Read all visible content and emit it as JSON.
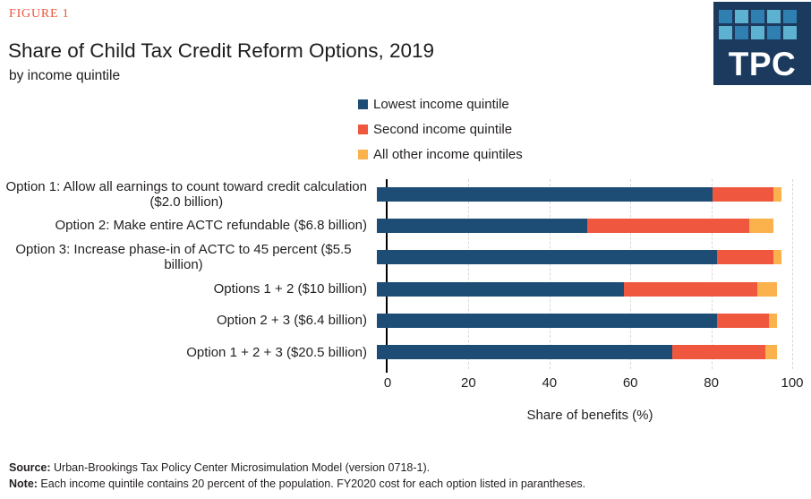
{
  "figure_label": "FIGURE 1",
  "title": "Share of Child Tax Credit Reform Options, 2019",
  "subtitle": "by income quintile",
  "logo": {
    "text": "TPC"
  },
  "colors": {
    "accent_red": "#ee5439",
    "logo_navy": "#1b3a5e",
    "logo_square_medium": "#2f7fb1",
    "logo_square_light": "#5db1d1",
    "bar_navy": "#1d4d75",
    "bar_red": "#f0573f",
    "bar_yellow": "#fbb14c",
    "gridline": "#d7d7d7",
    "text": "#231f20"
  },
  "chart_data": {
    "type": "bar",
    "orientation": "horizontal",
    "stacked": true,
    "title": "Share of Child Tax Credit Reform Options, 2019",
    "subtitle": "by income quintile",
    "categories": [
      "Option 1: Allow all earnings to count toward credit calculation\n($2.0 billion)",
      "Option 2: Make entire ACTC refundable ($6.8 billion)",
      "Option 3: Increase phase-in of ACTC to 45 percent ($5.5 billion)",
      "Options 1 + 2 ($10 billion)",
      "Option 2 + 3 ($6.4 billion)",
      "Option 1 + 2 + 3 ($20.5 billion)"
    ],
    "series": [
      {
        "name": "Lowest income quintile",
        "color": "#1d4d75",
        "values": [
          83,
          52,
          84,
          61,
          84,
          73
        ]
      },
      {
        "name": "Second income quintile",
        "color": "#f0573f",
        "values": [
          15,
          40,
          14,
          33,
          13,
          23
        ]
      },
      {
        "name": "All other income quintiles",
        "color": "#fbb14c",
        "values": [
          2,
          6,
          2,
          5,
          2,
          3
        ]
      }
    ],
    "xlabel": "Share of benefits (%)",
    "xlim": [
      0,
      100
    ],
    "xticks": [
      0,
      20,
      40,
      60,
      80,
      100
    ],
    "grid": true,
    "legend_position": "top-center"
  },
  "footer": {
    "source_label": "Source:",
    "source_text": " Urban-Brookings Tax Policy Center Microsimulation Model (version 0718-1).",
    "note_label": "Note:",
    "note_text": " Each income quintile contains 20 percent of the population. FY2020 cost for each option listed in parantheses."
  }
}
